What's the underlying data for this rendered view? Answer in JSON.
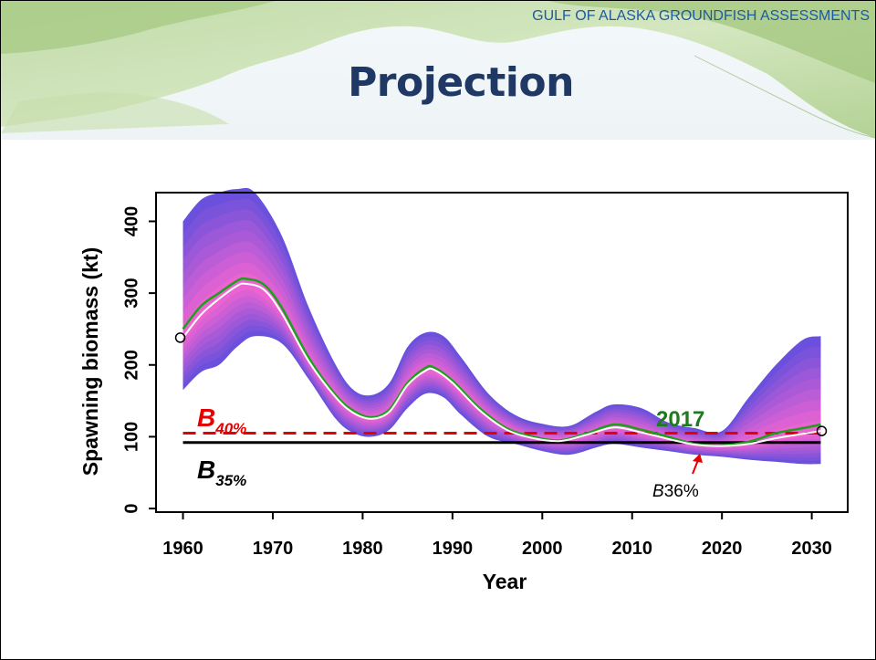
{
  "header": {
    "tag": "GULF OF ALASKA GROUNDFISH ASSESSMENTS",
    "title": "Projection"
  },
  "chart_data": {
    "type": "line",
    "title": "",
    "xlabel": "Year",
    "ylabel": "Spawning biomass (kt)",
    "xlim": [
      1957,
      2034
    ],
    "ylim": [
      -5,
      440
    ],
    "x_ticks": [
      1960,
      1970,
      1980,
      1990,
      2000,
      2010,
      2020,
      2030
    ],
    "y_ticks": [
      0,
      100,
      200,
      300,
      400
    ],
    "grid": false,
    "series": [
      {
        "name": "2017",
        "style": "green line (historical/projected median)",
        "x": [
          1960,
          1962,
          1964,
          1966,
          1967,
          1969,
          1971,
          1974,
          1977,
          1979,
          1981,
          1983,
          1985,
          1987,
          1988,
          1990,
          1993,
          1996,
          1999,
          2002,
          2005,
          2008,
          2011,
          2014,
          2017,
          2020,
          2023,
          2026,
          2029,
          2031
        ],
        "y": [
          250,
          282,
          300,
          317,
          320,
          312,
          280,
          210,
          158,
          136,
          127,
          138,
          175,
          196,
          196,
          178,
          140,
          112,
          100,
          95,
          105,
          117,
          110,
          100,
          90,
          88,
          93,
          105,
          112,
          117
        ]
      },
      {
        "name": "",
        "style": "white line (projection median)",
        "x": [
          1960,
          1962,
          1964,
          1966,
          1967,
          1969,
          1971,
          1974,
          1977,
          1979,
          1981,
          1983,
          1985,
          1987,
          1988,
          1990,
          1993,
          1996,
          1999,
          2002,
          2005,
          2008,
          2011,
          2014,
          2017,
          2020,
          2023,
          2026,
          2029,
          2031
        ],
        "y": [
          238,
          270,
          292,
          310,
          313,
          305,
          272,
          205,
          155,
          133,
          125,
          135,
          172,
          192,
          193,
          175,
          137,
          110,
          98,
          94,
          103,
          113,
          106,
          97,
          89,
          87,
          90,
          98,
          104,
          108
        ]
      }
    ],
    "uncertainty_band": {
      "x": [
        1960,
        1962,
        1964,
        1966,
        1968,
        1971,
        1974,
        1977,
        1979,
        1981,
        1983,
        1985,
        1987,
        1989,
        1991,
        1994,
        1997,
        2000,
        2003,
        2006,
        2008,
        2011,
        2014,
        2017,
        2020,
        2023,
        2026,
        2029,
        2031
      ],
      "upper": [
        400,
        430,
        440,
        445,
        440,
        380,
        280,
        200,
        165,
        158,
        175,
        225,
        245,
        240,
        210,
        160,
        130,
        118,
        115,
        135,
        145,
        140,
        120,
        112,
        108,
        155,
        200,
        235,
        240
      ],
      "lower": [
        165,
        190,
        200,
        225,
        240,
        230,
        180,
        125,
        105,
        100,
        110,
        140,
        160,
        155,
        130,
        100,
        90,
        80,
        75,
        85,
        90,
        85,
        80,
        75,
        72,
        68,
        65,
        62,
        62
      ]
    },
    "reference_lines": [
      {
        "label_main": "B",
        "label_sub": "40%",
        "value": 105,
        "style": "red dashed"
      },
      {
        "label_main": "B",
        "label_sub": "35%",
        "value": 92,
        "style": "black solid"
      }
    ],
    "annotations": [
      {
        "text_italic": "B",
        "text": "36%",
        "x": 2017,
        "y": 88
      },
      {
        "text": "2017",
        "x": 2016,
        "y": 120
      }
    ],
    "colors": {
      "green": "#1aa01a",
      "red": "#e60000",
      "band_outer": "#6a50dc",
      "band_inner": "#e060d0",
      "dark_green_label": "#1e7a1e"
    }
  }
}
